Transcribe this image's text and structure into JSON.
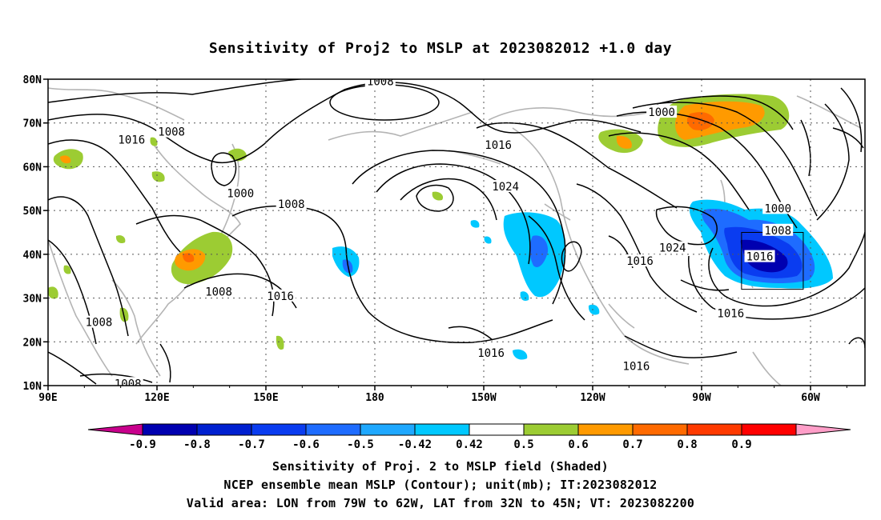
{
  "title": "Sensitivity of Proj2 to MSLP at 2023082012 +1.0 day",
  "map": {
    "lat_labels": [
      "80N",
      "70N",
      "60N",
      "50N",
      "40N",
      "30N",
      "20N",
      "10N"
    ],
    "lon_labels": [
      "90E",
      "120E",
      "150E",
      "180",
      "150W",
      "120W",
      "90W",
      "60W"
    ],
    "contour_labels": [
      {
        "text": "1008",
        "lon": 181.5,
        "lat": 79.5
      },
      {
        "text": "1016",
        "lon": 113,
        "lat": 66.2
      },
      {
        "text": "1008",
        "lon": 124,
        "lat": 68
      },
      {
        "text": "1000",
        "lon": 143,
        "lat": 54
      },
      {
        "text": "1008",
        "lon": 157,
        "lat": 51.5
      },
      {
        "text": "1016",
        "lon": 214,
        "lat": 65
      },
      {
        "text": "1024",
        "lon": 216,
        "lat": 55.5
      },
      {
        "text": "1000",
        "lon": 259,
        "lat": 72.5
      },
      {
        "text": "1000",
        "lon": 291,
        "lat": 50.5
      },
      {
        "text": "1008",
        "lon": 291,
        "lat": 45.5
      },
      {
        "text": "1024",
        "lon": 262,
        "lat": 41.5
      },
      {
        "text": "1016",
        "lon": 286,
        "lat": 39.5
      },
      {
        "text": "1016",
        "lon": 253,
        "lat": 38.5
      },
      {
        "text": "1008",
        "lon": 137,
        "lat": 31.5
      },
      {
        "text": "1016",
        "lon": 154,
        "lat": 30.5
      },
      {
        "text": "1008",
        "lon": 104,
        "lat": 24.5
      },
      {
        "text": "1016",
        "lon": 212,
        "lat": 17.5
      },
      {
        "text": "1016",
        "lon": 252,
        "lat": 14.5
      },
      {
        "text": "1016",
        "lon": 278,
        "lat": 26.5
      },
      {
        "text": "1008",
        "lon": 112,
        "lat": 10.5
      }
    ],
    "valid_box": {
      "lon_min": 281,
      "lon_max": 298,
      "lat_min": 32,
      "lat_max": 45
    }
  },
  "colorbar": {
    "labels": [
      "-0.9",
      "-0.8",
      "-0.7",
      "-0.6",
      "-0.5",
      "-0.42",
      "0.42",
      "0.5",
      "0.6",
      "0.7",
      "0.8",
      "0.9"
    ],
    "colors": [
      "#0000b0",
      "#0020d0",
      "#0a3cf0",
      "#1e6cff",
      "#1fa8ff",
      "#00c8ff",
      "#ffffff",
      "#9ccc33",
      "#ff9a00",
      "#ff6a00",
      "#ff3a00",
      "#ff0000"
    ],
    "low_end_color": "#c8008c",
    "high_end_color": "#ff9ec8"
  },
  "captions": {
    "line1": "Sensitivity of Proj. 2 to MSLP field (Shaded)",
    "line2": "NCEP ensemble mean MSLP (Contour); unit(mb); IT:2023082012",
    "line3": "Valid area: LON from 79W to 62W, LAT from 32N to 45N; VT: 2023082200"
  }
}
